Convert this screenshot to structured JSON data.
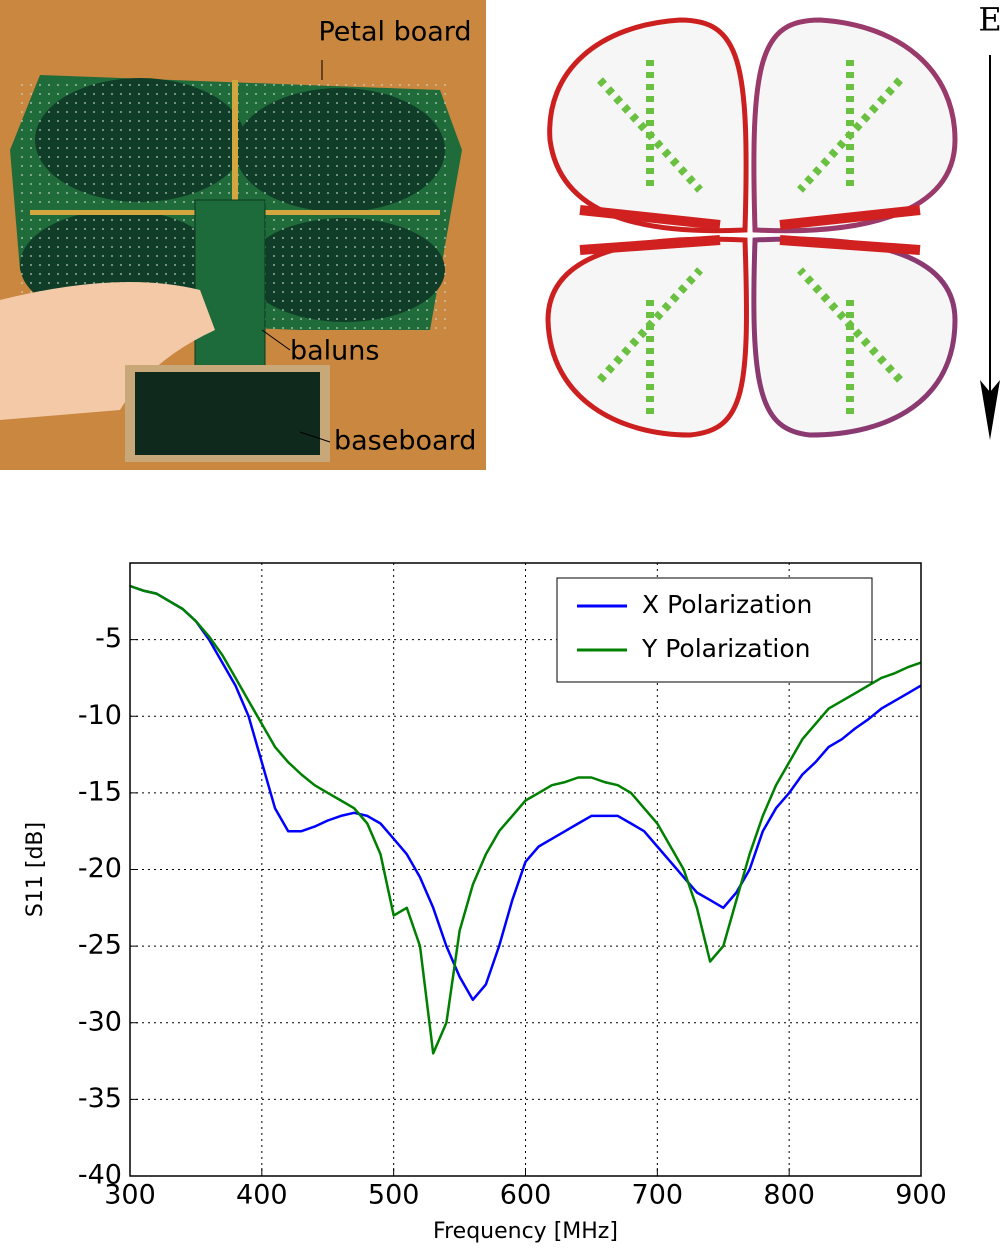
{
  "photo": {
    "labels": [
      "Petal board",
      "baluns",
      "baseboard"
    ]
  },
  "field_plot": {
    "label": "E"
  },
  "chart_data": {
    "type": "line",
    "xlabel": "Frequency [MHz]",
    "ylabel": "S11 [dB]",
    "xlim": [
      300,
      900
    ],
    "ylim": [
      -40,
      0
    ],
    "xticks": [
      300,
      400,
      500,
      600,
      700,
      800,
      900
    ],
    "yticks": [
      -40,
      -35,
      -30,
      -25,
      -20,
      -15,
      -10,
      -5
    ],
    "grid": true,
    "legend": "upper right",
    "x": [
      300,
      310,
      320,
      330,
      340,
      350,
      360,
      370,
      380,
      390,
      400,
      410,
      420,
      430,
      440,
      450,
      460,
      470,
      480,
      490,
      500,
      510,
      520,
      530,
      540,
      550,
      560,
      570,
      580,
      590,
      600,
      610,
      620,
      630,
      640,
      650,
      660,
      670,
      680,
      690,
      700,
      710,
      720,
      730,
      740,
      750,
      760,
      770,
      780,
      790,
      800,
      810,
      820,
      830,
      840,
      850,
      860,
      870,
      880,
      890,
      900
    ],
    "series": [
      {
        "name": "X Polarization",
        "color": "#0000ff",
        "values": [
          -1.5,
          -1.8,
          -2.0,
          -2.5,
          -3.0,
          -3.8,
          -5.0,
          -6.5,
          -8.0,
          -10.0,
          -13,
          -16,
          -17.5,
          -17.5,
          -17.2,
          -16.8,
          -16.5,
          -16.3,
          -16.5,
          -17,
          -18,
          -19,
          -20.5,
          -22.5,
          -25,
          -27,
          -28.5,
          -27.5,
          -25,
          -22,
          -19.5,
          -18.5,
          -18,
          -17.5,
          -17,
          -16.5,
          -16.5,
          -16.5,
          -17,
          -17.5,
          -18.5,
          -19.5,
          -20.5,
          -21.5,
          -22,
          -22.5,
          -21.5,
          -20,
          -17.5,
          -16,
          -15,
          -13.8,
          -13,
          -12,
          -11.5,
          -10.8,
          -10.2,
          -9.5,
          -9,
          -8.5,
          -8
        ]
      },
      {
        "name": "Y Polarization",
        "color": "#008000",
        "values": [
          -1.5,
          -1.8,
          -2.0,
          -2.5,
          -3.0,
          -3.8,
          -4.8,
          -6.0,
          -7.5,
          -9.0,
          -10.5,
          -12,
          -13,
          -13.8,
          -14.5,
          -15,
          -15.5,
          -16,
          -17,
          -19,
          -23,
          -22.5,
          -25,
          -32,
          -30,
          -24,
          -21,
          -19,
          -17.5,
          -16.5,
          -15.5,
          -15,
          -14.5,
          -14.3,
          -14,
          -14,
          -14.3,
          -14.5,
          -15,
          -16,
          -17,
          -18.5,
          -20,
          -22.5,
          -26,
          -25,
          -22,
          -19,
          -16.5,
          -14.5,
          -13,
          -11.5,
          -10.5,
          -9.5,
          -9,
          -8.5,
          -8,
          -7.5,
          -7.2,
          -6.8,
          -6.5
        ]
      }
    ]
  }
}
